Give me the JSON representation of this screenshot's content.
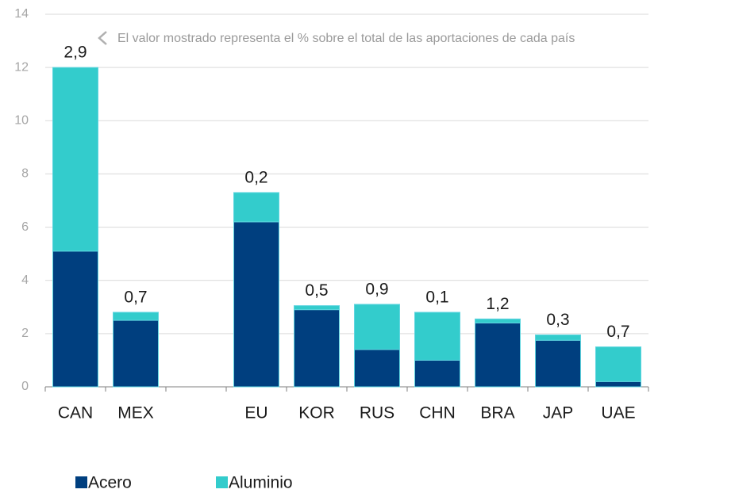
{
  "chart_data": {
    "type": "stacked_bar",
    "note": "El valor mostrado representa el % sobre el total de las aportaciones de cada país",
    "categories": [
      "CAN",
      "MEX",
      null,
      "EU",
      "KOR",
      "RUS",
      "CHN",
      "BRA",
      "JAP",
      "UAE"
    ],
    "series": [
      {
        "name": "Acero",
        "color": "#003f7f",
        "values": [
          5.1,
          2.5,
          null,
          6.2,
          2.9,
          1.4,
          1.0,
          2.4,
          1.75,
          0.2
        ]
      },
      {
        "name": "Aluminio",
        "color": "#33cccc",
        "values": [
          6.9,
          0.3,
          null,
          1.1,
          0.15,
          1.7,
          1.8,
          0.15,
          0.2,
          1.3
        ]
      }
    ],
    "bar_labels": [
      "2,9",
      "0,7",
      null,
      "0,2",
      "0,5",
      "0,9",
      "0,1",
      "1,2",
      "0,3",
      "0,7"
    ],
    "ylim": [
      0,
      14
    ],
    "yticks": [
      0,
      2,
      4,
      6,
      8,
      10,
      12,
      14
    ],
    "grid": true
  }
}
